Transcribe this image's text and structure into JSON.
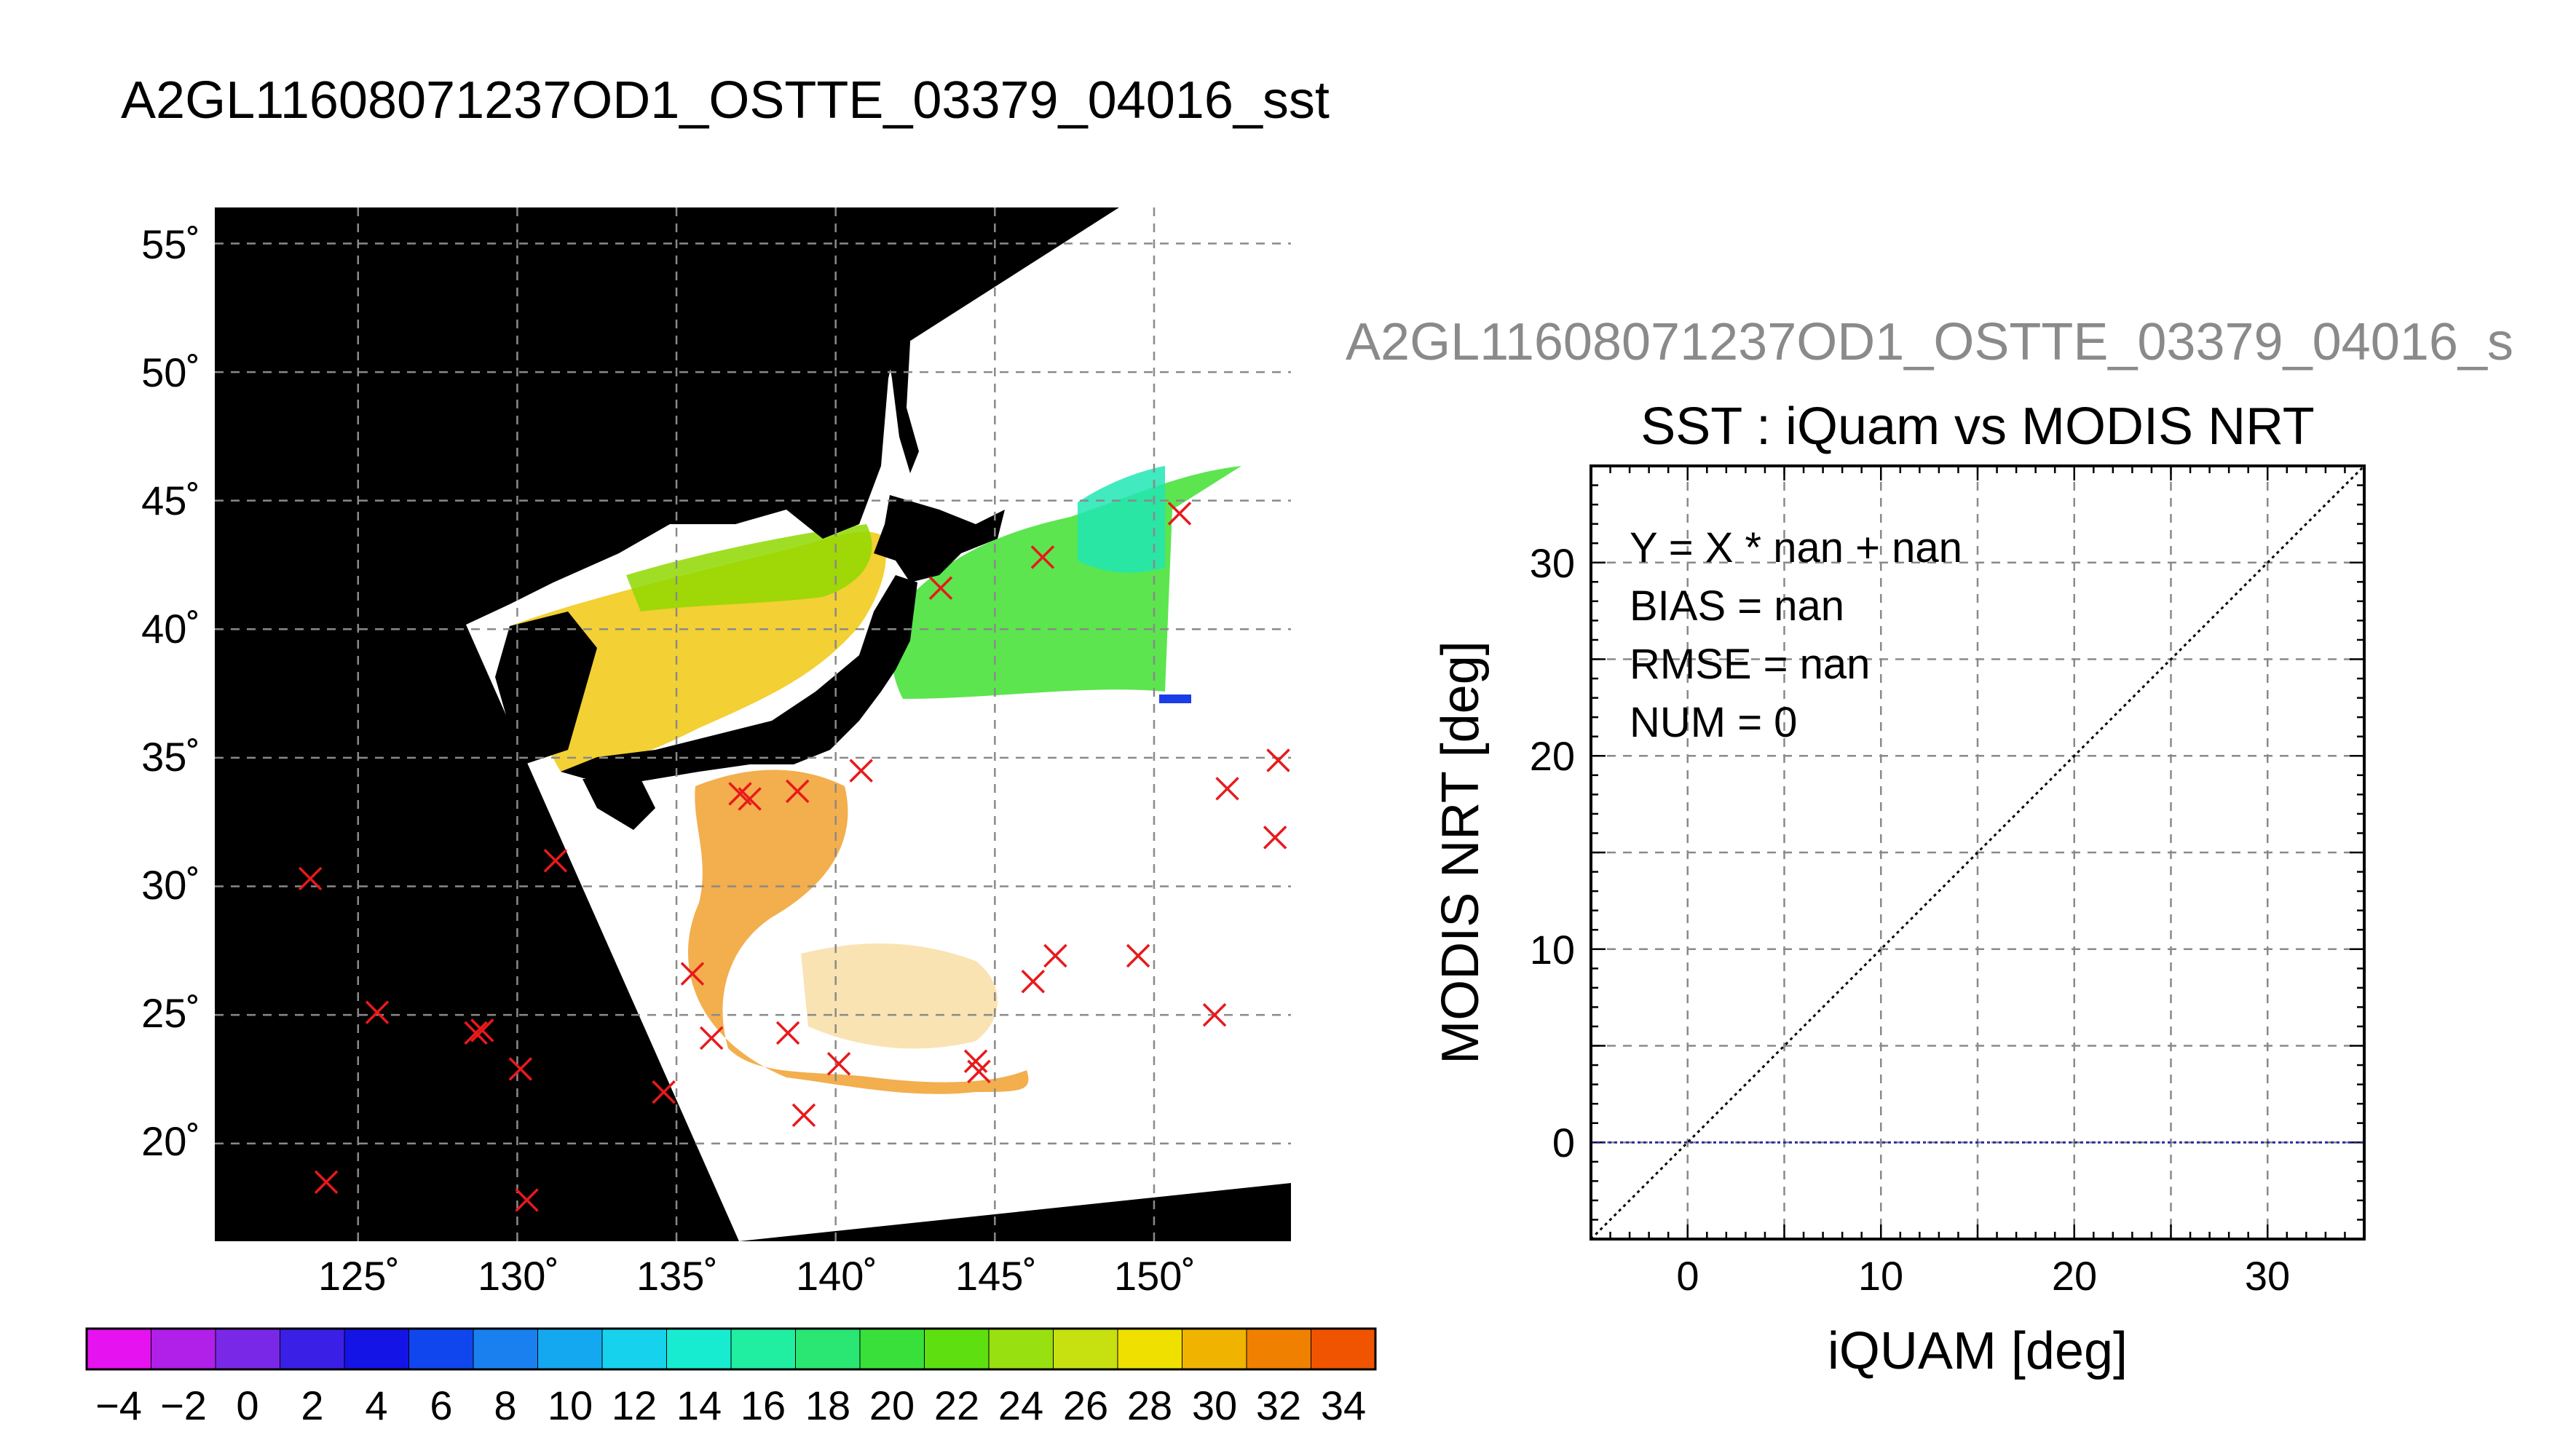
{
  "main_title": "A2GL11608071237OD1_OSTTE_03379_04016_sst",
  "map": {
    "lon_ticks": [
      "125˚",
      "130˚",
      "135˚",
      "140˚",
      "145˚",
      "150˚"
    ],
    "lat_ticks": [
      "55˚",
      "50˚",
      "45˚",
      "40˚",
      "35˚",
      "30˚",
      "25˚",
      "20˚"
    ],
    "colorbar_labels": [
      "−4",
      "−2",
      "0",
      "2",
      "4",
      "6",
      "8",
      "10",
      "12",
      "14",
      "16",
      "18",
      "20",
      "22",
      "24",
      "26",
      "28",
      "30",
      "32",
      "34"
    ],
    "colors": {
      "background": "#000000",
      "swath": "#ffffff",
      "marker": "#e8191c"
    }
  },
  "scatter": {
    "file_title": "A2GL11608071237OD1_OSTTE_03379_04016_s",
    "title": "SST : iQuam vs MODIS NRT",
    "xlabel": "iQUAM [deg]",
    "ylabel": "MODIS NRT [deg]",
    "x_ticks": [
      "0",
      "10",
      "20",
      "30"
    ],
    "y_ticks": [
      "0",
      "10",
      "20",
      "30"
    ],
    "stats": {
      "equation": "Y = X * nan + nan",
      "bias": "BIAS = nan",
      "rmse": "RMSE = nan",
      "num": "NUM = 0"
    }
  },
  "chart_data": [
    {
      "type": "scatter",
      "panel": "map",
      "xlim": [
        120.5,
        154.3
      ],
      "ylim": [
        16.2,
        56.4
      ],
      "grid": true,
      "colorbar": {
        "min": -5,
        "max": 35,
        "step": 2
      },
      "points": [
        {
          "x": 123.5,
          "y": 30.3
        },
        {
          "x": 124,
          "y": 18.5
        },
        {
          "x": 125.6,
          "y": 25.1
        },
        {
          "x": 128.7,
          "y": 24.3
        },
        {
          "x": 128.9,
          "y": 24.4
        },
        {
          "x": 130.1,
          "y": 22.9
        },
        {
          "x": 130.3,
          "y": 17.8
        },
        {
          "x": 131.2,
          "y": 31
        },
        {
          "x": 134.6,
          "y": 22
        },
        {
          "x": 135.5,
          "y": 26.6
        },
        {
          "x": 136.1,
          "y": 24.1
        },
        {
          "x": 137,
          "y": 33.6
        },
        {
          "x": 137.3,
          "y": 33.4
        },
        {
          "x": 138.5,
          "y": 24.3
        },
        {
          "x": 138.8,
          "y": 33.7
        },
        {
          "x": 139,
          "y": 21.1
        },
        {
          "x": 140.1,
          "y": 23.1
        },
        {
          "x": 140.8,
          "y": 34.5
        },
        {
          "x": 143.3,
          "y": 41.6
        },
        {
          "x": 144.4,
          "y": 23.2
        },
        {
          "x": 144.5,
          "y": 22.8
        },
        {
          "x": 146.2,
          "y": 26.3
        },
        {
          "x": 146.5,
          "y": 42.8
        },
        {
          "x": 146.9,
          "y": 27.3
        },
        {
          "x": 149.5,
          "y": 27.3
        },
        {
          "x": 150.8,
          "y": 44.5
        },
        {
          "x": 151.9,
          "y": 25
        },
        {
          "x": 152.3,
          "y": 33.8
        },
        {
          "x": 153.8,
          "y": 31.9
        },
        {
          "x": 153.9,
          "y": 34.9
        }
      ]
    },
    {
      "type": "scatter",
      "panel": "scatter",
      "title": "SST : iQuam vs MODIS NRT",
      "xlabel": "iQUAM [deg]",
      "ylabel": "MODIS NRT [deg]",
      "xlim": [
        -5,
        35
      ],
      "ylim": [
        -5,
        35
      ],
      "grid": true,
      "series": [],
      "reference_lines": [
        {
          "kind": "identity",
          "color": "#000000"
        },
        {
          "kind": "horizontal",
          "y": 0,
          "color": "#2a2aa0"
        }
      ]
    }
  ]
}
